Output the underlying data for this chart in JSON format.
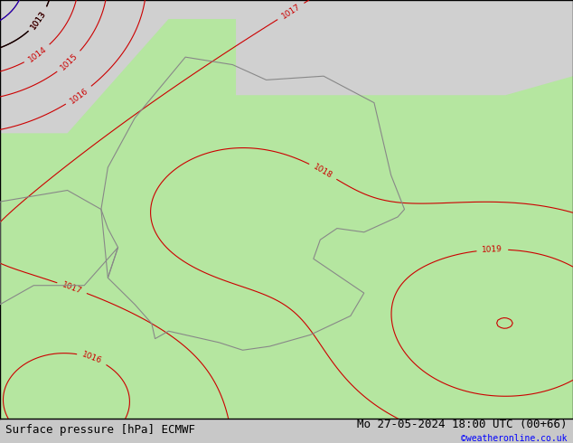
{
  "title_left": "Surface pressure [hPa] ECMWF",
  "title_right": "Mo 27-05-2024 18:00 UTC (00+66)",
  "copyright": "©weatheronline.co.uk",
  "background_map": "#b5e6a0",
  "sea_color": "#d8d8d8",
  "border_color": "#888888",
  "isobar_color_red": "#cc0000",
  "isobar_color_blue": "#0000cc",
  "isobar_color_black": "#000000",
  "label_fontsize": 7,
  "footer_fontsize": 9,
  "fig_width": 6.34,
  "fig_height": 4.9,
  "dpi": 100
}
